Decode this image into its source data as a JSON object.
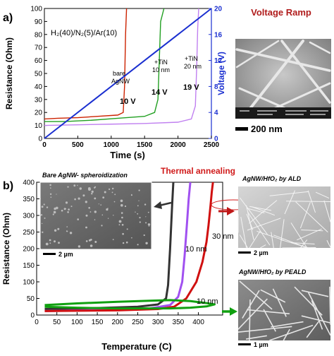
{
  "panel_a": {
    "label": "a)",
    "gas_label": "H₂(40)/N₂(5)/Ar(10)",
    "sem_title": "Voltage Ramp",
    "scale_bar": "200 nm",
    "annotations": {
      "bare": [
        "bare",
        "AgNW"
      ],
      "tin10": [
        "+TiN",
        "10 nm"
      ],
      "tin20": [
        "+TiN",
        "20 nm"
      ],
      "v10": "10 V",
      "v14": "14 V",
      "v19": "19 V"
    },
    "colors": {
      "bare": "#cc2200",
      "tin10": "#22a022",
      "tin20": "#c080f0",
      "voltage": "#1a2fd0"
    }
  },
  "panel_b": {
    "label": "b)",
    "title": "Thermal annealing",
    "inset_bare_title": "Bare AgNW- spheroidization",
    "inset_bare_scale": "2 µm",
    "inset_ald_title": "AgNW/HfO₂ by ALD",
    "inset_ald_scale": "2 µm",
    "inset_peald_title": "AgNW/HfO₂ by PEALD",
    "inset_peald_scale": "1 µm",
    "ann_30": "30 nm",
    "ann_10a": "10 nm",
    "ann_10b": "10 nm",
    "colors": {
      "bare": "#333333",
      "hfo2_10": "#a050f0",
      "hfo2_30": "#d01010",
      "peald_10": "#10a010"
    }
  },
  "chart_data": [
    {
      "type": "line",
      "xlabel": "Time (s)",
      "ylabel": "Resistance (Ohm)",
      "y2label": "Voltage (V)",
      "xlim": [
        0,
        2500
      ],
      "ylim": [
        0,
        100
      ],
      "y2lim": [
        0,
        20
      ],
      "x_ticks": [
        0,
        500,
        1000,
        1500,
        2000,
        2500
      ],
      "y_ticks": [
        0,
        10,
        20,
        30,
        40,
        50,
        60,
        70,
        80,
        90,
        100
      ],
      "y2_ticks": [
        0,
        4,
        8,
        12,
        16,
        20
      ],
      "series": [
        {
          "key": "bare",
          "x": [
            0,
            200,
            500,
            800,
            1100,
            1180,
            1200,
            1215,
            1230
          ],
          "y": [
            15,
            15.5,
            16,
            17,
            18,
            20,
            40,
            80,
            100
          ]
        },
        {
          "key": "tin10",
          "x": [
            0,
            300,
            700,
            1100,
            1500,
            1650,
            1700,
            1720,
            1740,
            1760,
            1790
          ],
          "y": [
            13,
            13,
            14,
            15.5,
            17,
            20,
            30,
            60,
            90,
            94,
            100
          ]
        },
        {
          "key": "tin20",
          "x": [
            0,
            500,
            1000,
            1500,
            2000,
            2200,
            2260,
            2280,
            2295,
            2310
          ],
          "y": [
            10,
            10.5,
            11,
            11.5,
            12.5,
            15,
            25,
            55,
            85,
            100
          ]
        },
        {
          "key": "voltage",
          "axis": "y2",
          "x": [
            0,
            2500
          ],
          "y": [
            0,
            20
          ]
        }
      ]
    },
    {
      "type": "line",
      "xlabel": "Temperature (C)",
      "ylabel": "Resistance (Ohm)",
      "xlim": [
        0,
        460
      ],
      "ylim": [
        0,
        400
      ],
      "x_ticks": [
        0,
        50,
        100,
        150,
        200,
        250,
        300,
        350,
        400
      ],
      "y_ticks": [
        0,
        50,
        100,
        150,
        200,
        250,
        300,
        350,
        400
      ],
      "series": [
        {
          "key": "bare",
          "x": [
            20,
            150,
            250,
            300,
            320,
            325,
            330,
            335,
            338
          ],
          "y": [
            18,
            21,
            25,
            32,
            50,
            90,
            200,
            330,
            400
          ]
        },
        {
          "key": "hfo2_10",
          "x": [
            20,
            150,
            280,
            330,
            350,
            360,
            366,
            372,
            376,
            380
          ],
          "y": [
            12,
            15,
            20,
            30,
            55,
            100,
            180,
            280,
            350,
            400
          ]
        },
        {
          "key": "hfo2_30",
          "x": [
            20,
            200,
            300,
            340,
            370,
            395,
            410,
            420,
            425,
            430,
            433,
            436
          ],
          "y": [
            12,
            14,
            18,
            25,
            50,
            100,
            160,
            220,
            270,
            330,
            370,
            400
          ]
        },
        {
          "key": "peald_10",
          "x": [
            20,
            100,
            200,
            280,
            330,
            380,
            420,
            440,
            420,
            380,
            330,
            280,
            200,
            100,
            20
          ],
          "y": [
            30,
            35,
            40,
            43,
            45,
            42,
            36,
            32,
            26,
            22,
            20,
            20,
            20,
            22,
            25
          ]
        }
      ]
    }
  ]
}
